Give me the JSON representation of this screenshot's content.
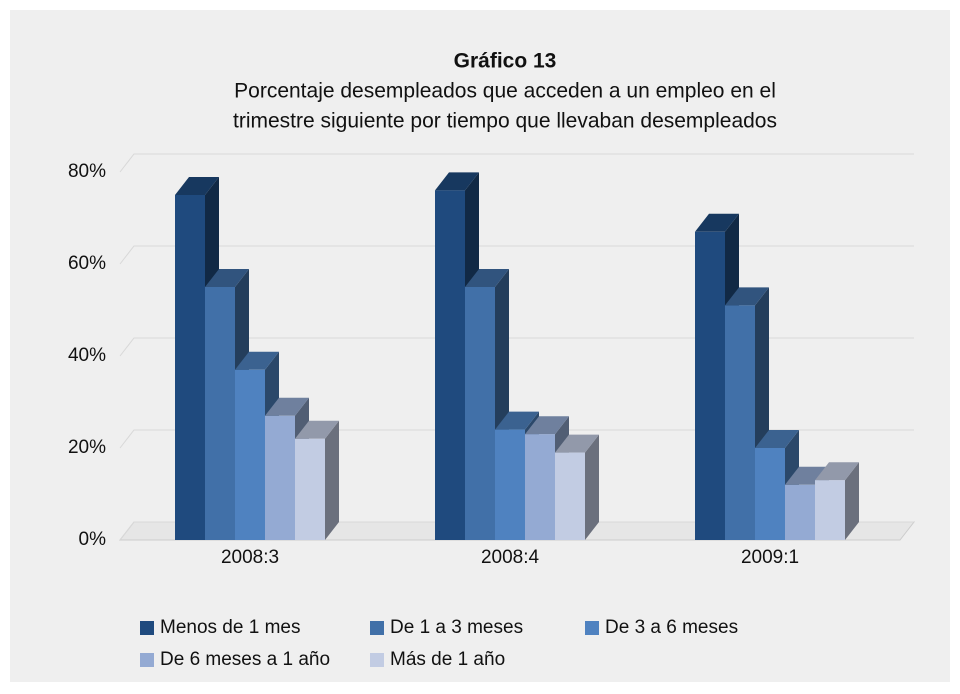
{
  "chart_data": {
    "type": "bar3d",
    "title": "Gráfico 13",
    "subtitle": [
      "Porcentaje desempleados que acceden a un empleo en el",
      "trimestre siguiente por tiempo que llevaban desempleados"
    ],
    "categories": [
      "2008:3",
      "2008:4",
      "2009:1"
    ],
    "series": [
      {
        "name": "Menos de 1 mes",
        "color": "#1f4a7e",
        "values": [
          75,
          76,
          67
        ]
      },
      {
        "name": "De 1 a 3 meses",
        "color": "#4170a8",
        "values": [
          55,
          55,
          51
        ]
      },
      {
        "name": "De 3 a 6 meses",
        "color": "#4f82c0",
        "values": [
          37,
          24,
          20
        ]
      },
      {
        "name": "De 6 meses a 1 año",
        "color": "#94aad3",
        "values": [
          27,
          23,
          12
        ]
      },
      {
        "name": "Más de 1 año",
        "color": "#c2cce3",
        "values": [
          22,
          19,
          13
        ]
      }
    ],
    "ylim": [
      0,
      80
    ],
    "yticks": [
      {
        "value": 0,
        "label": "0%"
      },
      {
        "value": 20,
        "label": "20%"
      },
      {
        "value": 40,
        "label": "40%"
      },
      {
        "value": 60,
        "label": "60%"
      },
      {
        "value": 80,
        "label": "80%"
      }
    ],
    "grid": true
  }
}
